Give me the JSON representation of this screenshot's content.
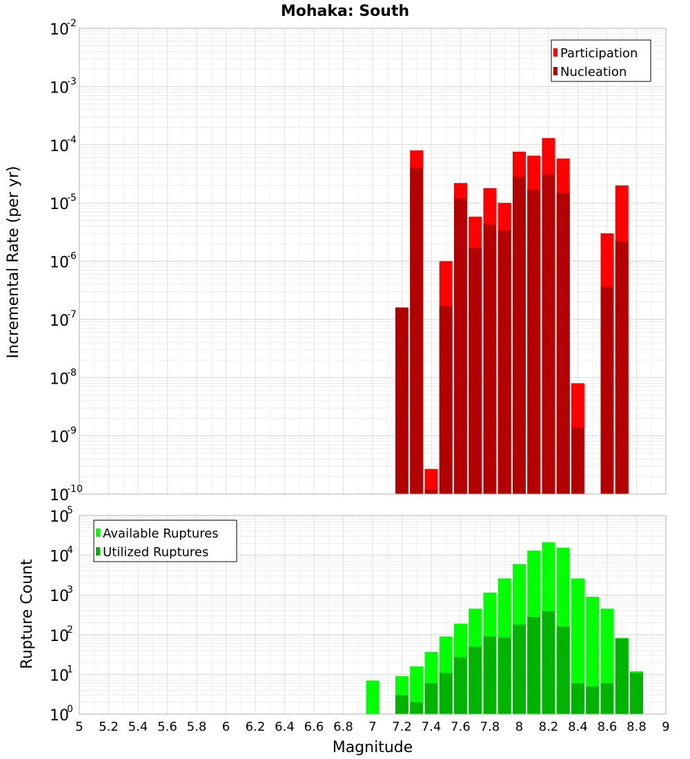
{
  "chart_data": [
    {
      "type": "bar",
      "title": "Mohaka: South",
      "ylabel": "Incremental Rate (per yr)",
      "yscale": "log",
      "ylim": [
        1e-10,
        0.01
      ],
      "xlim": [
        5,
        9
      ],
      "grid": true,
      "legend_position": "top-right",
      "yticks": [
        {
          "base": "10",
          "exp": "-2"
        },
        {
          "base": "10",
          "exp": "-3"
        },
        {
          "base": "10",
          "exp": "-4"
        },
        {
          "base": "10",
          "exp": "-5"
        },
        {
          "base": "10",
          "exp": "-6"
        },
        {
          "base": "10",
          "exp": "-7"
        },
        {
          "base": "10",
          "exp": "-8"
        },
        {
          "base": "10",
          "exp": "-9"
        },
        {
          "base": "10",
          "exp": "-10"
        }
      ],
      "x": [
        7.2,
        7.3,
        7.4,
        7.5,
        7.6,
        7.7,
        7.8,
        7.9,
        8.0,
        8.1,
        8.2,
        8.3,
        8.4,
        8.5,
        8.6,
        8.7,
        8.8
      ],
      "series": [
        {
          "name": "Participation",
          "color": "#ff0000",
          "values": [
            1.6e-07,
            8e-05,
            2.7e-10,
            1e-06,
            2.2e-05,
            5.8e-06,
            1.8e-05,
            1e-05,
            7.6e-05,
            6.5e-05,
            0.00013,
            5.8e-05,
            8e-09,
            null,
            3e-06,
            2e-05,
            null
          ]
        },
        {
          "name": "Nucleation",
          "color": "#b30000",
          "values": [
            1.6e-07,
            4e-05,
            1.2e-10,
            1.7e-07,
            1.2e-05,
            1.7e-06,
            4.3e-06,
            3.4e-06,
            2.8e-05,
            1.7e-05,
            3.1e-05,
            1.5e-05,
            1.4e-09,
            null,
            3.7e-07,
            2.2e-06,
            null
          ]
        }
      ]
    },
    {
      "type": "bar",
      "ylabel": "Rupture Count",
      "xlabel": "Magnitude",
      "yscale": "log",
      "ylim": [
        1,
        100000
      ],
      "xlim": [
        5,
        9
      ],
      "grid": true,
      "legend_position": "top-left",
      "yticks": [
        {
          "base": "10",
          "exp": "5"
        },
        {
          "base": "10",
          "exp": "4"
        },
        {
          "base": "10",
          "exp": "3"
        },
        {
          "base": "10",
          "exp": "2"
        },
        {
          "base": "10",
          "exp": "1"
        },
        {
          "base": "10",
          "exp": "0"
        }
      ],
      "xticks": [
        "5",
        "5.2",
        "5.4",
        "5.6",
        "5.8",
        "6",
        "6.2",
        "6.4",
        "6.6",
        "6.8",
        "7",
        "7.2",
        "7.4",
        "7.6",
        "7.8",
        "8",
        "8.2",
        "8.4",
        "8.6",
        "8.8",
        "9"
      ],
      "x": [
        7.0,
        7.1,
        7.2,
        7.3,
        7.4,
        7.5,
        7.6,
        7.7,
        7.8,
        7.9,
        8.0,
        8.1,
        8.2,
        8.3,
        8.4,
        8.5,
        8.6,
        8.7,
        8.8
      ],
      "series": [
        {
          "name": "Available Ruptures",
          "color": "#00ff00",
          "values": [
            7,
            null,
            9,
            16,
            37,
            90,
            190,
            450,
            1150,
            2600,
            6000,
            13000,
            21000,
            15500,
            2600,
            900,
            450,
            83,
            12
          ]
        },
        {
          "name": "Utilized Ruptures",
          "color": "#00b300",
          "values": [
            null,
            null,
            3,
            2,
            6,
            11,
            27,
            50,
            90,
            85,
            180,
            280,
            390,
            160,
            6,
            5,
            6,
            80,
            11
          ]
        }
      ]
    }
  ]
}
